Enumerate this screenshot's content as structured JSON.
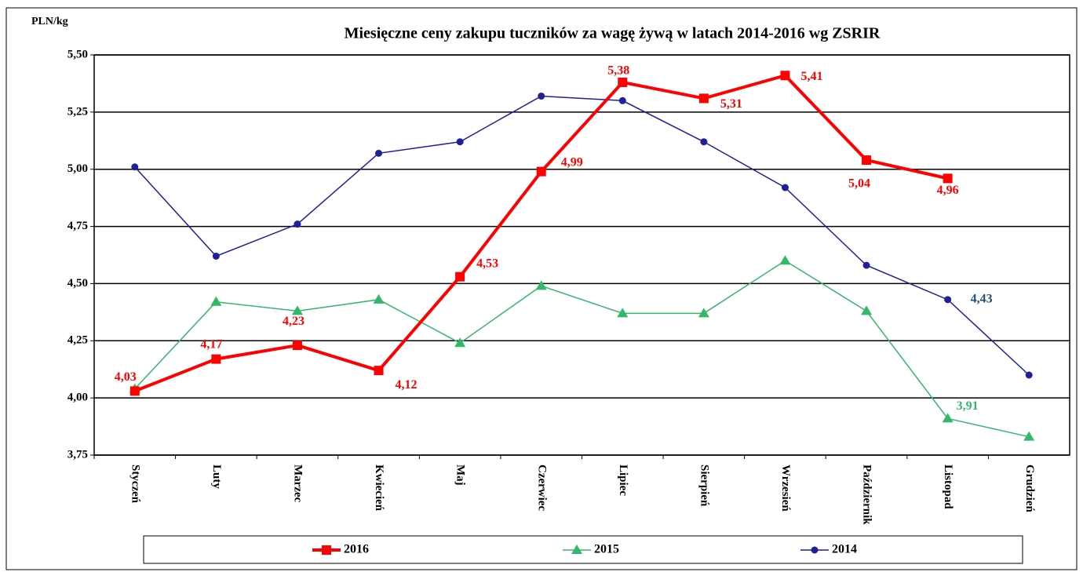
{
  "chart_data": {
    "type": "line",
    "title": "Miesięczne ceny zakupu tuczników za wagę żywą w latach 2014-2016  wg ZSRIR",
    "y_label": "PLN/kg",
    "categories": [
      "Styczeń",
      "Luty",
      "Marzec",
      "Kwiecień",
      "Maj",
      "Czerwiec",
      "Lipiec",
      "Sierpień",
      "Wrzesień",
      "Październik",
      "Listopad",
      "Grudzień"
    ],
    "series": [
      {
        "name": "2016",
        "color": "#ff0000",
        "marker": "square",
        "values": [
          4.03,
          4.17,
          4.23,
          4.12,
          4.53,
          4.99,
          5.38,
          5.31,
          5.41,
          5.04,
          4.96,
          null
        ],
        "value_labels": [
          "4,03",
          "4,17",
          "4,23",
          "4,12",
          "4,53",
          "4,99",
          "5,38",
          "5,31",
          "5,41",
          "5,04",
          "4,96",
          null
        ]
      },
      {
        "name": "2015",
        "color": "#33b86a",
        "marker": "triangle",
        "values": [
          4.04,
          4.42,
          4.38,
          4.43,
          4.24,
          4.49,
          4.37,
          4.37,
          4.6,
          4.38,
          3.91,
          3.83
        ],
        "value_labels": [
          null,
          null,
          null,
          null,
          null,
          null,
          null,
          null,
          null,
          null,
          "3,91",
          null
        ]
      },
      {
        "name": "2014",
        "color": "#1f1f99",
        "marker": "circle",
        "values": [
          5.01,
          4.62,
          4.76,
          5.07,
          5.12,
          5.32,
          5.3,
          5.12,
          4.92,
          4.58,
          4.43,
          4.1
        ],
        "value_labels": [
          null,
          null,
          null,
          null,
          null,
          null,
          null,
          null,
          null,
          null,
          "4,43",
          null
        ]
      }
    ],
    "ylim": [
      3.75,
      5.5
    ],
    "yticks": [
      {
        "value": 3.75,
        "label": "3,75"
      },
      {
        "value": 4.0,
        "label": "4,00"
      },
      {
        "value": 4.25,
        "label": "4,25"
      },
      {
        "value": 4.5,
        "label": "4,50"
      },
      {
        "value": 4.75,
        "label": "4,75"
      },
      {
        "value": 5.0,
        "label": "5,00"
      },
      {
        "value": 5.25,
        "label": "5,25"
      },
      {
        "value": 5.5,
        "label": "5,50"
      }
    ],
    "grid": true,
    "legend": "bottom"
  }
}
